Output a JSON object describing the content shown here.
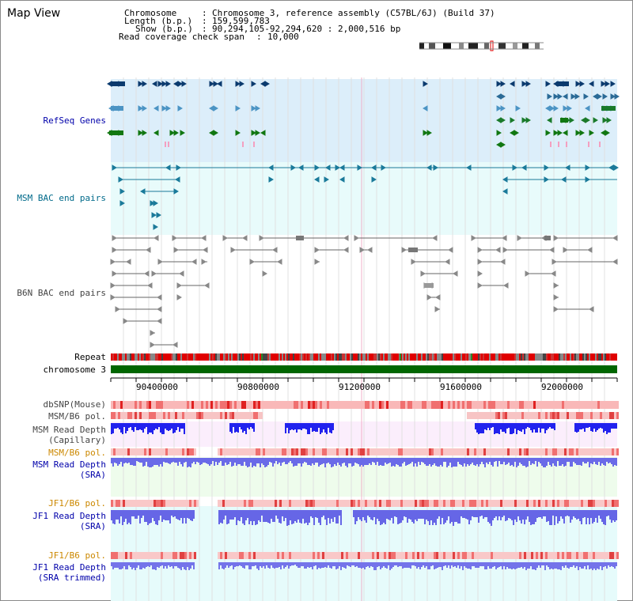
{
  "view": {
    "title": "Map View",
    "info": {
      "chromosome_key": "Chromosome",
      "chromosome_value": "Chromosome 3, reference assembly (C57BL/6J) (Build 37)",
      "length_key": "Length (b.p.)",
      "length_value": "159,599,783",
      "show_key": "Show (b.p.)",
      "show_value": "90,294,105-92,294,620 : 2,000,516 bp",
      "coverage_key": "Read coverage check span",
      "coverage_value": "10,000"
    }
  },
  "tracks": {
    "refseq": "RefSeq Genes",
    "msm_bac": "MSM BAC end pairs",
    "b6n_bac": "B6N BAC end pairs",
    "repeat": "Repeat",
    "chromosome": "chromosome 3",
    "dbsnp": "dbSNP(Mouse)",
    "msm_b6_pol_1": "MSM/B6 pol.",
    "msm_read_depth_cap_1": "MSM Read Depth",
    "msm_read_depth_cap_2": "(Capillary)",
    "msm_b6_pol_2": "MSM/B6 pol.",
    "msm_read_depth_sra_1": "MSM Read Depth",
    "msm_read_depth_sra_2": "(SRA)",
    "jf1_b6_pol_1": "JF1/B6 pol.",
    "jf1_read_depth_sra_1": "JF1 Read Depth",
    "jf1_read_depth_sra_2": "(SRA)",
    "jf1_b6_pol_2": "JF1/B6 pol.",
    "jf1_read_depth_trim_1": "JF1 Read Depth",
    "jf1_read_depth_trim_2": "(SRA trimmed)"
  },
  "axis": {
    "ticks": [
      "90400000",
      "90800000",
      "91200000",
      "91600000",
      "92000000"
    ]
  },
  "colors": {
    "refseq_label": "#0000aa",
    "bac_label": "#006a8a",
    "b6n_label": "#444444",
    "pol_label": "#cc8800",
    "depth_label": "#0000aa",
    "refseq_bg": "#dceefa",
    "msm_bg": "#e8fbfb",
    "chromosome_bar": "#006600",
    "depth_blue": "#3333ee"
  }
}
